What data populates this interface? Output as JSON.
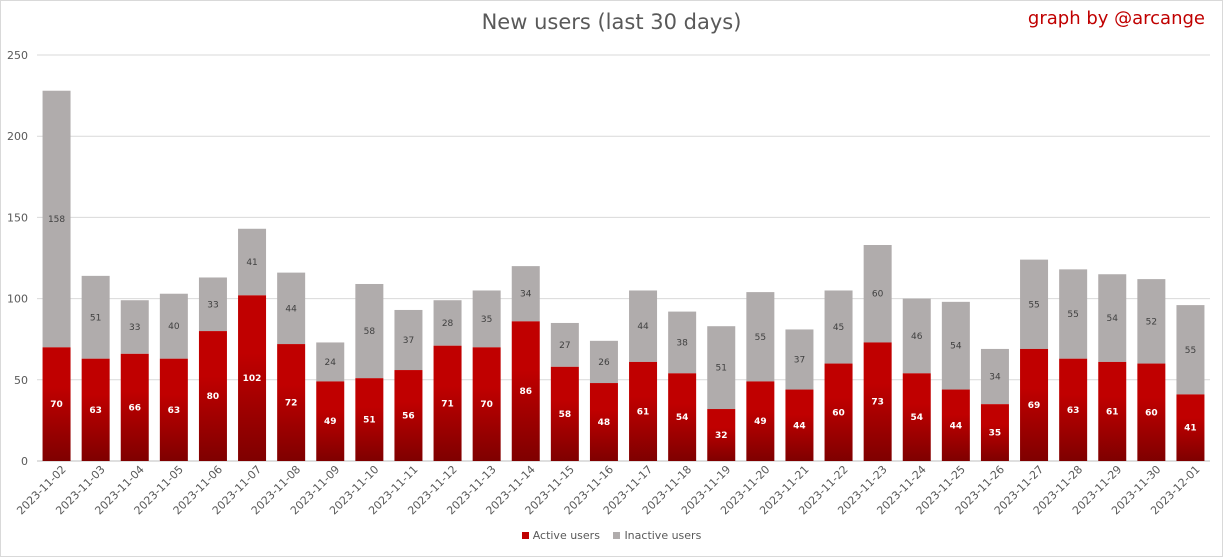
{
  "title": "New users (last 30 days)",
  "credit": "graph by @arcange",
  "colors": {
    "active": "#c00000",
    "active_dark": "#7f0000",
    "inactive": "#b0acac",
    "grid": "#d9d9d9",
    "axis_text": "#595959"
  },
  "legend": {
    "active_label": "Active users",
    "inactive_label": "Inactive users"
  },
  "chart_data": {
    "type": "bar",
    "stacked": true,
    "title": "New users (last 30 days)",
    "xlabel": "",
    "ylabel": "",
    "ylim": [
      0,
      250
    ],
    "yticks": [
      0,
      50,
      100,
      150,
      200,
      250
    ],
    "grid": true,
    "legend_position": "bottom",
    "categories": [
      "2023-11-02",
      "2023-11-03",
      "2023-11-04",
      "2023-11-05",
      "2023-11-06",
      "2023-11-07",
      "2023-11-08",
      "2023-11-09",
      "2023-11-10",
      "2023-11-11",
      "2023-11-12",
      "2023-11-13",
      "2023-11-14",
      "2023-11-15",
      "2023-11-16",
      "2023-11-17",
      "2023-11-18",
      "2023-11-19",
      "2023-11-20",
      "2023-11-21",
      "2023-11-22",
      "2023-11-23",
      "2023-11-24",
      "2023-11-25",
      "2023-11-26",
      "2023-11-27",
      "2023-11-28",
      "2023-11-29",
      "2023-11-30",
      "2023-12-01"
    ],
    "series": [
      {
        "name": "Active users",
        "values": [
          70,
          63,
          66,
          63,
          80,
          102,
          72,
          49,
          51,
          56,
          71,
          70,
          86,
          58,
          48,
          61,
          54,
          32,
          49,
          44,
          60,
          73,
          54,
          44,
          35,
          69,
          63,
          61,
          60,
          41
        ]
      },
      {
        "name": "Inactive users",
        "values": [
          158,
          51,
          33,
          40,
          33,
          41,
          44,
          24,
          58,
          37,
          28,
          35,
          34,
          27,
          26,
          44,
          38,
          51,
          55,
          37,
          45,
          60,
          46,
          54,
          34,
          55,
          55,
          54,
          52,
          55
        ]
      }
    ]
  }
}
